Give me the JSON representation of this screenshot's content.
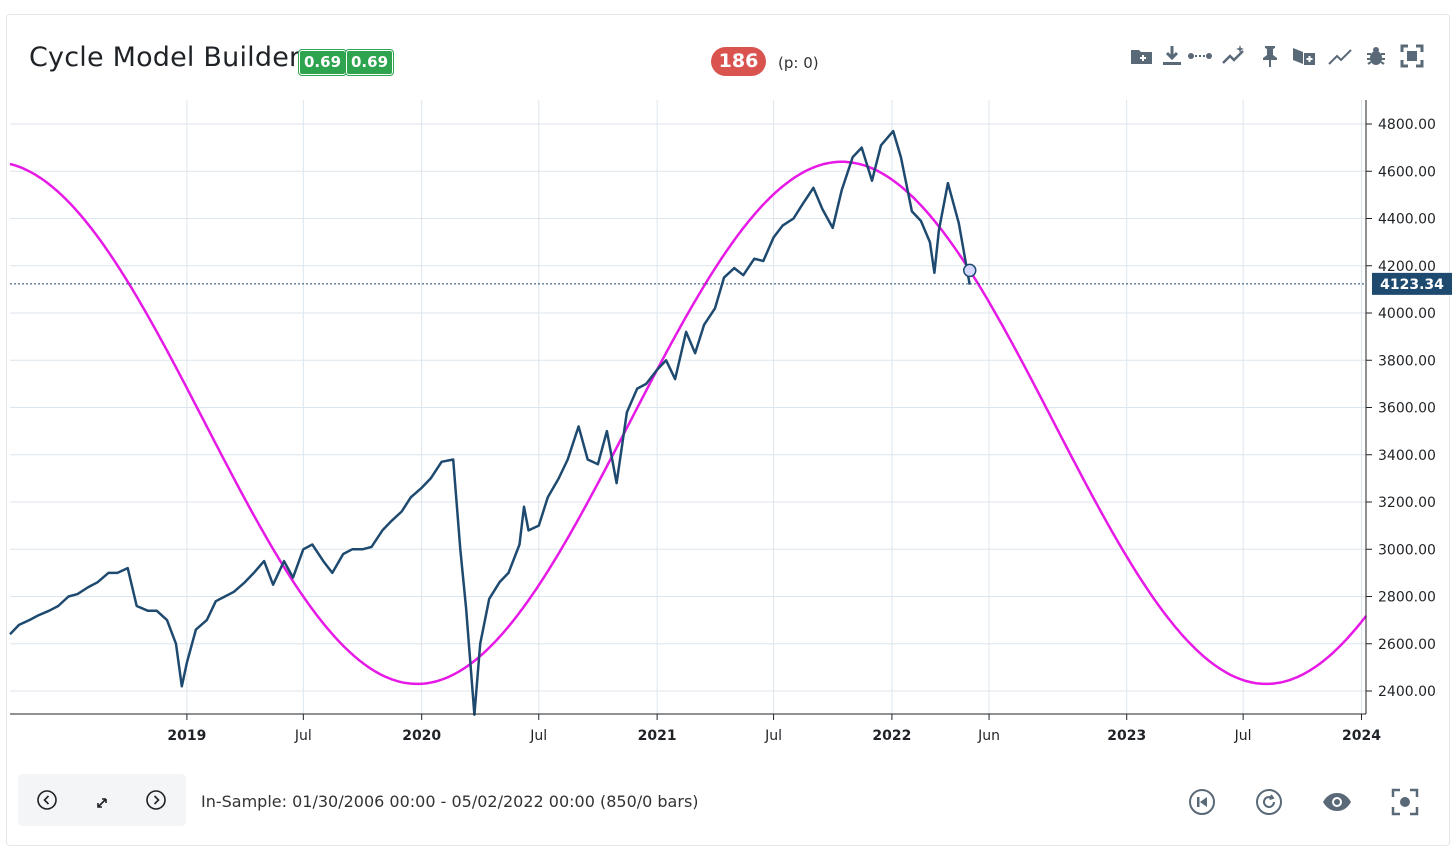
{
  "header": {
    "title": "Cycle Model Builder",
    "badges": [
      "0.69",
      "0.69"
    ],
    "count": "186",
    "p_info": "(p: 0)"
  },
  "toolbar": {
    "icons": [
      "folder-plus-icon",
      "download-icon",
      "dotted-line-icon",
      "sparkle-chart-icon",
      "pin-icon",
      "export-icon",
      "trend-line-icon",
      "bug-icon",
      "fullscreen-icon"
    ]
  },
  "footer": {
    "in_sample": "In-Sample: 01/30/2006 00:00 - 05/02/2022 00:00 (850/0 bars)",
    "nav_icons": [
      "chevron-left-circle-icon",
      "expand-arrows-icon",
      "chevron-right-circle-icon"
    ],
    "right_icons": [
      "skip-back-icon",
      "refresh-icon",
      "eye-icon",
      "focus-icon"
    ]
  },
  "colors": {
    "price": "#1f4a70",
    "cycle": "#e619e6",
    "badge": "#2ea44f",
    "pill": "#d9534f",
    "price_label_bg": "#1f4a70"
  },
  "chart_data": {
    "type": "line",
    "title": "",
    "xlabel": "",
    "ylabel": "",
    "x_range": [
      "2018-04-01",
      "2024-01-08"
    ],
    "ylim": [
      2300,
      4900
    ],
    "y_ticks": [
      "4800.00",
      "4600.00",
      "4400.00",
      "4200.00",
      "4000.00",
      "3800.00",
      "3600.00",
      "3400.00",
      "3200.00",
      "3000.00",
      "2800.00",
      "2600.00",
      "2400.00"
    ],
    "x_ticks": [
      {
        "label": "2019",
        "date": "2019-01-01",
        "major": true
      },
      {
        "label": "Jul",
        "date": "2019-07-01",
        "major": false
      },
      {
        "label": "2020",
        "date": "2020-01-01",
        "major": true
      },
      {
        "label": "Jul",
        "date": "2020-07-01",
        "major": false
      },
      {
        "label": "2021",
        "date": "2021-01-01",
        "major": true
      },
      {
        "label": "Jul",
        "date": "2021-07-01",
        "major": false
      },
      {
        "label": "2022",
        "date": "2022-01-01",
        "major": true
      },
      {
        "label": "Jun",
        "date": "2022-06-01",
        "major": false
      },
      {
        "label": "2023",
        "date": "2023-01-01",
        "major": true
      },
      {
        "label": "Jul",
        "date": "2023-07-01",
        "major": false
      },
      {
        "label": "2024",
        "date": "2024-01-01",
        "major": true
      }
    ],
    "last_price_label": "4123.34",
    "last_price": 4123.34,
    "series": [
      {
        "name": "",
        "kind": "price",
        "x": [
          "2018-04-01",
          "2018-04-15",
          "2018-05-01",
          "2018-05-15",
          "2018-06-01",
          "2018-06-15",
          "2018-07-01",
          "2018-07-15",
          "2018-08-01",
          "2018-08-15",
          "2018-09-01",
          "2018-09-15",
          "2018-10-01",
          "2018-10-15",
          "2018-11-01",
          "2018-11-15",
          "2018-12-01",
          "2018-12-15",
          "2018-12-24",
          "2019-01-01",
          "2019-01-15",
          "2019-02-01",
          "2019-02-15",
          "2019-03-01",
          "2019-03-15",
          "2019-04-01",
          "2019-04-15",
          "2019-05-01",
          "2019-05-15",
          "2019-06-01",
          "2019-06-15",
          "2019-07-01",
          "2019-07-15",
          "2019-08-01",
          "2019-08-15",
          "2019-09-01",
          "2019-09-15",
          "2019-10-01",
          "2019-10-15",
          "2019-11-01",
          "2019-11-15",
          "2019-12-01",
          "2019-12-15",
          "2020-01-01",
          "2020-01-15",
          "2020-02-01",
          "2020-02-19",
          "2020-03-01",
          "2020-03-10",
          "2020-03-23",
          "2020-04-01",
          "2020-04-15",
          "2020-05-01",
          "2020-05-15",
          "2020-06-01",
          "2020-06-08",
          "2020-06-15",
          "2020-07-01",
          "2020-07-15",
          "2020-08-01",
          "2020-08-15",
          "2020-09-01",
          "2020-09-15",
          "2020-10-01",
          "2020-10-15",
          "2020-10-30",
          "2020-11-15",
          "2020-12-01",
          "2020-12-15",
          "2021-01-01",
          "2021-01-15",
          "2021-01-29",
          "2021-02-15",
          "2021-03-01",
          "2021-03-15",
          "2021-04-01",
          "2021-04-15",
          "2021-05-01",
          "2021-05-15",
          "2021-06-01",
          "2021-06-15",
          "2021-07-01",
          "2021-07-15",
          "2021-08-01",
          "2021-08-15",
          "2021-09-01",
          "2021-09-15",
          "2021-10-01",
          "2021-10-15",
          "2021-11-01",
          "2021-11-15",
          "2021-12-01",
          "2021-12-15",
          "2022-01-03",
          "2022-01-15",
          "2022-02-01",
          "2022-02-15",
          "2022-03-01",
          "2022-03-08",
          "2022-03-15",
          "2022-03-29",
          "2022-04-15",
          "2022-05-02"
        ],
        "y": [
          2640,
          2680,
          2700,
          2720,
          2740,
          2760,
          2800,
          2810,
          2840,
          2860,
          2900,
          2900,
          2920,
          2760,
          2740,
          2740,
          2700,
          2600,
          2420,
          2520,
          2660,
          2700,
          2780,
          2800,
          2820,
          2860,
          2900,
          2950,
          2850,
          2950,
          2880,
          3000,
          3020,
          2950,
          2900,
          2980,
          3000,
          3000,
          3010,
          3080,
          3120,
          3160,
          3220,
          3260,
          3300,
          3370,
          3380,
          3000,
          2750,
          2300,
          2600,
          2790,
          2860,
          2900,
          3020,
          3180,
          3080,
          3100,
          3220,
          3300,
          3380,
          3520,
          3380,
          3360,
          3500,
          3280,
          3580,
          3680,
          3700,
          3760,
          3800,
          3720,
          3920,
          3830,
          3950,
          4020,
          4150,
          4190,
          4160,
          4230,
          4220,
          4320,
          4370,
          4400,
          4460,
          4530,
          4440,
          4360,
          4520,
          4660,
          4700,
          4560,
          4710,
          4770,
          4660,
          4430,
          4390,
          4300,
          4170,
          4350,
          4550,
          4380,
          4120
        ]
      },
      {
        "name": "",
        "kind": "cycle",
        "center": 3535,
        "amplitude": 1105,
        "peak_date": "2021-10-15",
        "trough_date": "2019-12-15",
        "period_days": 1320
      }
    ]
  }
}
